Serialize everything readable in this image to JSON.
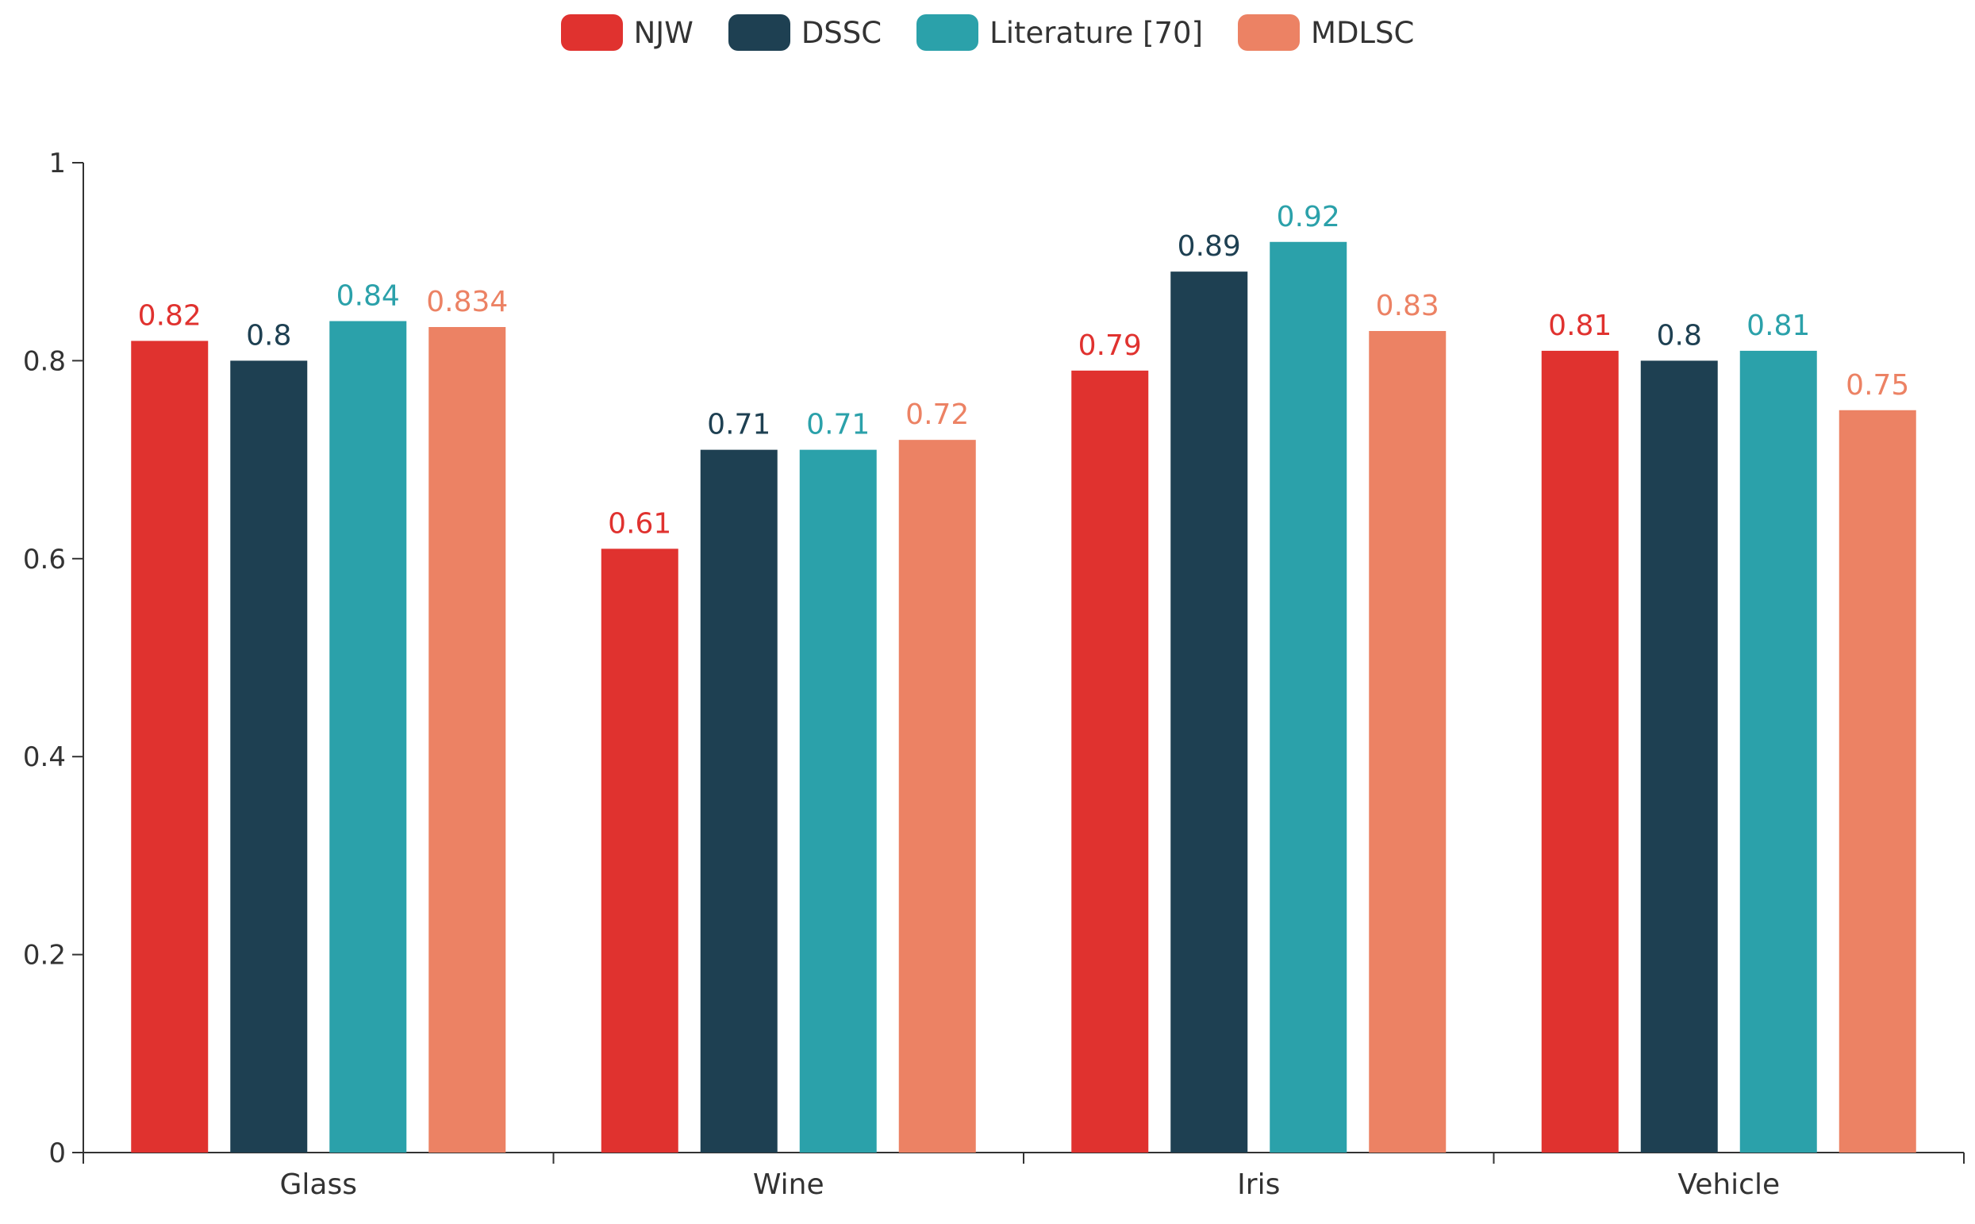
{
  "colors": {
    "NJW": "#e0322f",
    "DSSC": "#1e4052",
    "Literature [70]": "#2ba1aa",
    "MDLSC": "#ec8264",
    "axis": "#333333"
  },
  "chart_data": {
    "type": "bar",
    "title": "",
    "xlabel": "",
    "ylabel": "",
    "ylim": [
      0,
      1
    ],
    "yticks": [
      "0",
      "0.2",
      "0.4",
      "0.6",
      "0.8",
      "1"
    ],
    "legend_position": "top-center",
    "categories": [
      "Glass",
      "Wine",
      "Iris",
      "Vehicle"
    ],
    "series": [
      {
        "name": "NJW",
        "values": [
          0.82,
          0.61,
          0.79,
          0.81
        ],
        "labels": [
          "0.82",
          "0.61",
          "0.79",
          "0.81"
        ]
      },
      {
        "name": "DSSC",
        "values": [
          0.8,
          0.71,
          0.89,
          0.8
        ],
        "labels": [
          "0.8",
          "0.71",
          "0.89",
          "0.8"
        ]
      },
      {
        "name": "Literature [70]",
        "values": [
          0.84,
          0.71,
          0.92,
          0.81
        ],
        "labels": [
          "0.84",
          "0.71",
          "0.92",
          "0.81"
        ]
      },
      {
        "name": "MDLSC",
        "values": [
          0.834,
          0.72,
          0.83,
          0.75
        ],
        "labels": [
          "0.834",
          "0.72",
          "0.83",
          "0.75"
        ]
      }
    ]
  }
}
